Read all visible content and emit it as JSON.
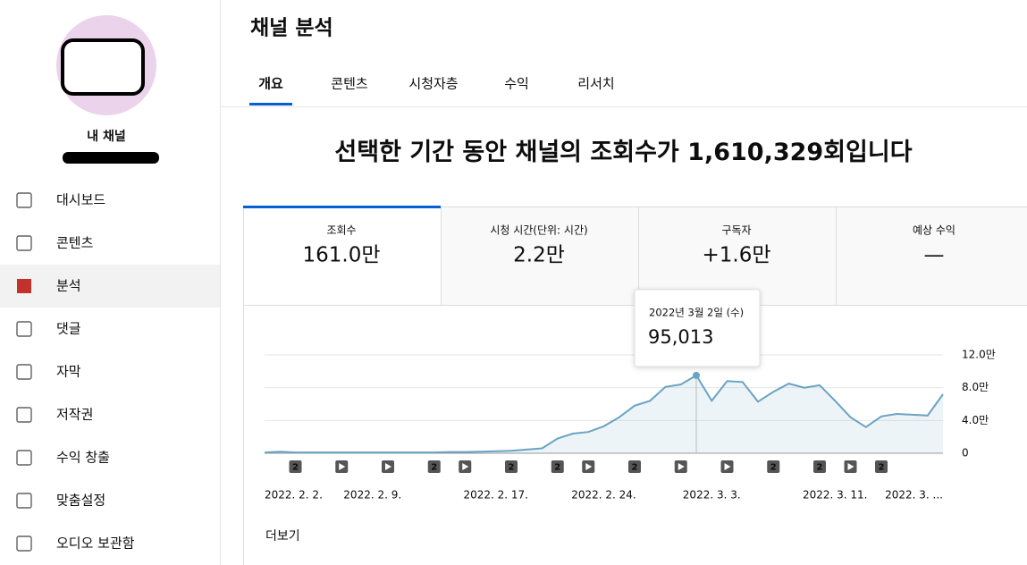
{
  "sidebar": {
    "channel_name": "내 채널",
    "nav": [
      "대시보드",
      "콘텐츠",
      "분석",
      "댓글",
      "자막",
      "저작권",
      "수익 창출",
      "맞춤설정",
      "오디오 보관함"
    ],
    "active": 2
  },
  "header": {
    "title": "채널 분석",
    "tabs": [
      "개요",
      "콘텐츠",
      "시청자층",
      "수익",
      "리서치"
    ],
    "active_tab": 0
  },
  "headline": {
    "before": "선택한 기간 동안 채널의 조회수가",
    "number": "1,610,329",
    "after": "회입니다"
  },
  "cards": [
    {
      "label": "조회수",
      "value": "161.0만"
    },
    {
      "label": "시청 시간(단위: 시간)",
      "value": "2.2만"
    },
    {
      "label": "구독자",
      "value": "+1.6만"
    },
    {
      "label": "예상 수익",
      "value": "—"
    }
  ],
  "more_link": "더보기",
  "chart_data": {
    "type": "line",
    "categories": [
      "2022. 2. 2.",
      null,
      null,
      null,
      null,
      null,
      null,
      "2022. 2. 9.",
      null,
      null,
      null,
      null,
      null,
      null,
      null,
      "2022. 2. 17.",
      null,
      null,
      null,
      null,
      null,
      null,
      "2022. 2. 24.",
      null,
      null,
      null,
      null,
      null,
      null,
      "2022. 3. 3.",
      null,
      null,
      null,
      null,
      null,
      null,
      null,
      "2022. 3. 11.",
      null,
      null,
      null,
      null,
      null,
      null,
      "2022. 3. ..."
    ],
    "series": [
      {
        "name": "조회수",
        "color": "#6aa3c3",
        "values": [
          1000,
          2000,
          1000,
          1000,
          1000,
          1000,
          1000,
          1000,
          1000,
          1000,
          1000,
          1000,
          1500,
          1500,
          2000,
          2500,
          3000,
          4500,
          6000,
          18000,
          24000,
          26000,
          33000,
          44000,
          58000,
          64000,
          81000,
          84000,
          95013,
          64000,
          88000,
          87000,
          63000,
          75000,
          85000,
          80000,
          83000,
          64000,
          44000,
          32000,
          45000,
          48000,
          47000,
          46000,
          72000
        ]
      }
    ],
    "ylim": [
      0,
      120000
    ],
    "yticks": [
      0,
      {
        "value": 40000,
        "label": "4.0만"
      },
      {
        "value": 80000,
        "label": "8.0만"
      },
      {
        "value": 120000,
        "label": "12.0만"
      }
    ],
    "grid": true,
    "tooltip": {
      "index": 28,
      "date": "2022년 3월 2일 (수)",
      "value_label": "95,013"
    },
    "events": [
      {
        "index": 2,
        "label": "2"
      },
      {
        "index": 5,
        "icon": "play"
      },
      {
        "index": 8,
        "icon": "play"
      },
      {
        "index": 11,
        "label": "2"
      },
      {
        "index": 13,
        "icon": "play"
      },
      {
        "index": 16,
        "label": "2"
      },
      {
        "index": 19,
        "label": "2"
      },
      {
        "index": 21,
        "icon": "play"
      },
      {
        "index": 24,
        "label": "2"
      },
      {
        "index": 27,
        "icon": "play"
      },
      {
        "index": 30,
        "icon": "play"
      },
      {
        "index": 33,
        "label": "2"
      },
      {
        "index": 36,
        "label": "2"
      },
      {
        "index": 38,
        "icon": "play"
      },
      {
        "index": 40,
        "label": "2"
      }
    ]
  }
}
